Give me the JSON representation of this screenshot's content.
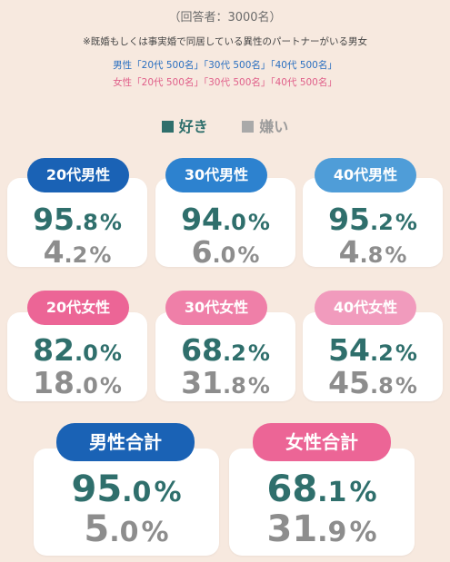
{
  "header": {
    "respondents": "（回答者：3000名）",
    "note": "※既婚もしくは事実婚で同居している異性のパートナーがいる男女",
    "male_groups": "男性「20代 500名」「30代 500名」「40代 500名」",
    "female_groups": "女性「20代 500名」「30代 500名」「40代 500名」"
  },
  "legend": {
    "like": "好き",
    "dislike": "嫌い"
  },
  "colors": {
    "like": "#2f6f6c",
    "dislike": "#8d8d8d",
    "male_20s": "#1a62b5",
    "male_30s": "#2d82cf",
    "male_40s": "#4f9dd8",
    "female_20s": "#ec6596",
    "female_30s": "#ef7fa8",
    "female_40s": "#f19bbd"
  },
  "chart_data": {
    "type": "table",
    "series": [
      "好き",
      "嫌い"
    ],
    "groups": [
      {
        "label": "20代男性",
        "like": 95.8,
        "dislike": 4.2
      },
      {
        "label": "30代男性",
        "like": 94.0,
        "dislike": 6.0
      },
      {
        "label": "40代男性",
        "like": 95.2,
        "dislike": 4.8
      },
      {
        "label": "20代女性",
        "like": 82.0,
        "dislike": 18.0
      },
      {
        "label": "30代女性",
        "like": 68.2,
        "dislike": 31.8
      },
      {
        "label": "40代女性",
        "like": 54.2,
        "dislike": 45.8
      },
      {
        "label": "男性合計",
        "like": 95.0,
        "dislike": 5.0
      },
      {
        "label": "女性合計",
        "like": 68.1,
        "dislike": 31.9
      }
    ],
    "unit": "%"
  }
}
